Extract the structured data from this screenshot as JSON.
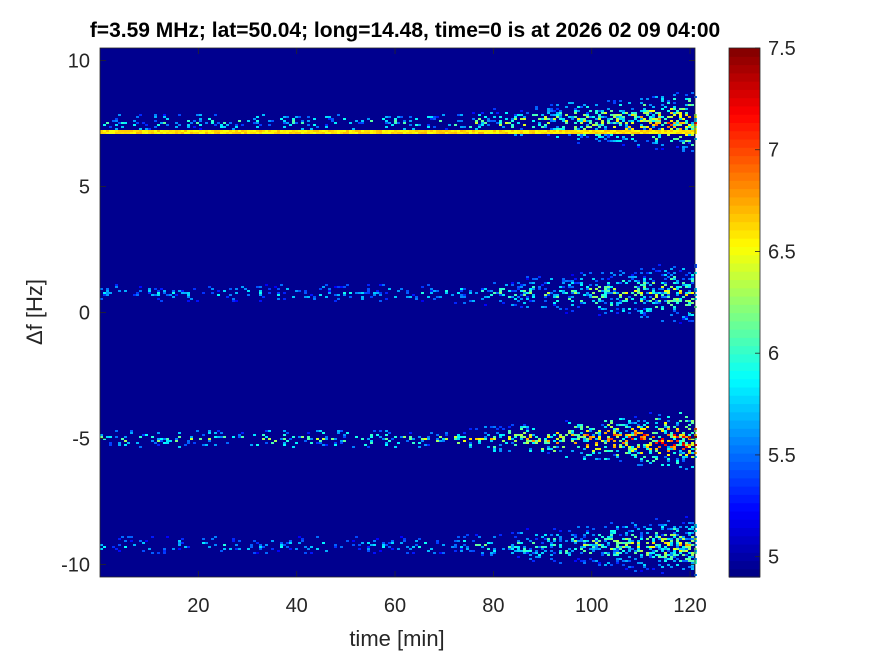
{
  "chart_data": {
    "type": "heatmap",
    "title": "f=3.59 MHz;  lat=50.04; long=14.48, time=0 is at 2026 02 09 04:00",
    "xlabel": "time [min]",
    "ylabel": "Δf [Hz]",
    "xlim": [
      0,
      121
    ],
    "ylim": [
      -10.5,
      10.5
    ],
    "xticks": [
      20,
      40,
      60,
      80,
      100,
      120
    ],
    "yticks": [
      -10,
      -5,
      0,
      5,
      10
    ],
    "xtick_labels": [
      "20",
      "40",
      "60",
      "80",
      "100",
      "120"
    ],
    "ytick_labels": [
      "-10",
      "-5",
      "0",
      "5",
      "10"
    ],
    "colorbar": {
      "colormap": "jet",
      "clim": [
        4.9,
        7.5
      ],
      "ticks": [
        5,
        5.5,
        6,
        6.5,
        7,
        7.5
      ],
      "tick_labels": [
        "5",
        "5.5",
        "6",
        "6.5",
        "7",
        "7.5"
      ]
    },
    "background_level": 5.0,
    "bands": [
      {
        "center_hz": 7.2,
        "note": "constant carrier line",
        "level": 6.6
      },
      {
        "center_hz": 7.6,
        "note": "spread echoes, strongest 80-120 min",
        "peak_level": 6.6
      },
      {
        "center_hz": 0.8,
        "note": "spread echoes, strongest 90-120 min",
        "peak_level": 6.3
      },
      {
        "center_hz": -5.0,
        "note": "spread echoes, strongest 100-120 min",
        "peak_level": 6.9
      },
      {
        "center_hz": -9.2,
        "note": "spread echoes along whole interval",
        "peak_level": 6.3
      }
    ]
  },
  "colors": {
    "axes_background": "#00008f",
    "tick_color": "#262626"
  }
}
